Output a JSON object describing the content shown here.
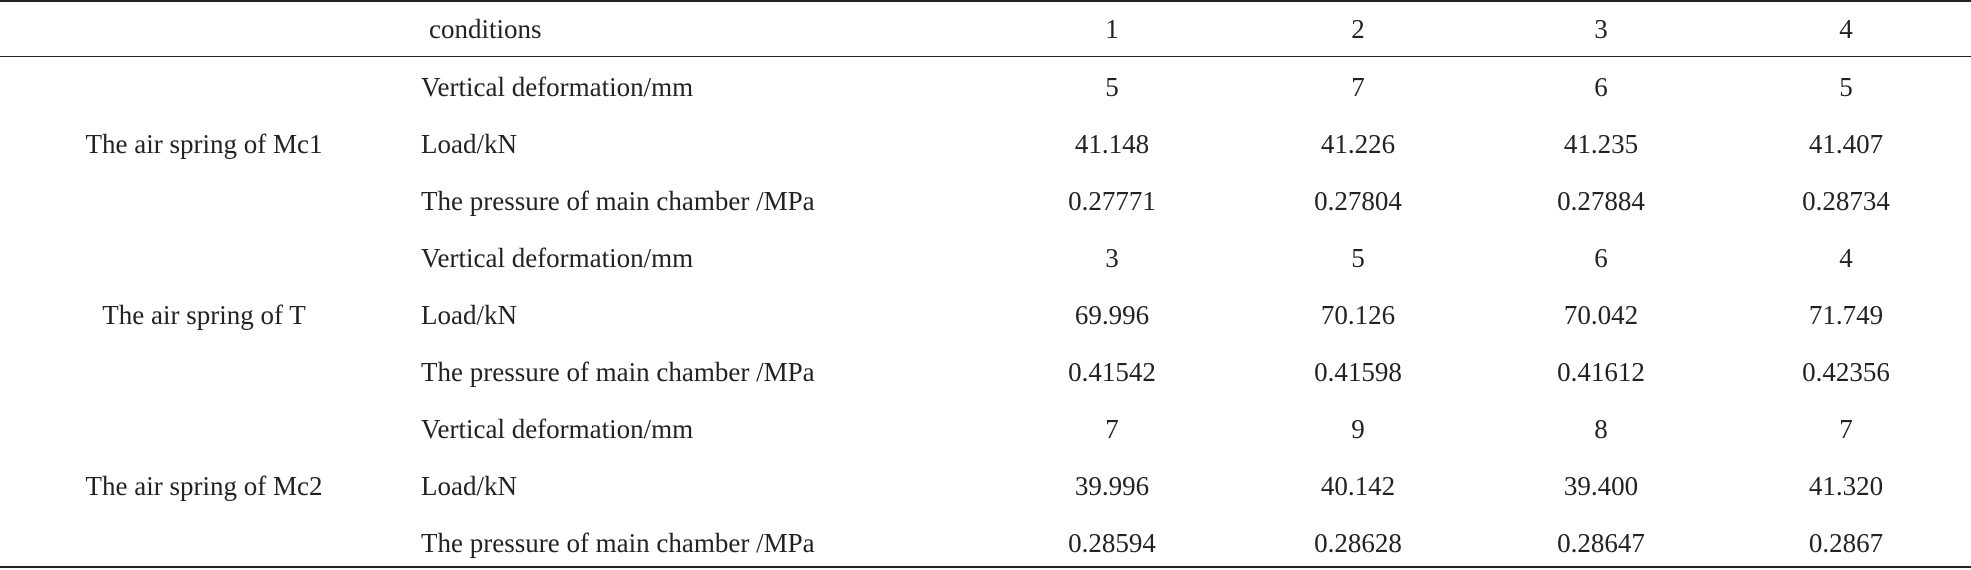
{
  "table": {
    "header": [
      "conditions",
      "1",
      "2",
      "3",
      "4"
    ],
    "groups": [
      {
        "label": "The air spring of Mc1",
        "rows": [
          [
            "Vertical deformation/mm",
            "5",
            "7",
            "6",
            "5"
          ],
          [
            "Load/kN",
            "41.148",
            "41.226",
            "41.235",
            "41.407"
          ],
          [
            "The pressure of main chamber /MPa",
            "0.27771",
            "0.27804",
            "0.27884",
            "0.28734"
          ]
        ]
      },
      {
        "label": "The air spring of T",
        "rows": [
          [
            "Vertical deformation/mm",
            "3",
            "5",
            "6",
            "4"
          ],
          [
            "Load/kN",
            "69.996",
            "70.126",
            "70.042",
            "71.749"
          ],
          [
            "The pressure of main chamber /MPa",
            "0.41542",
            "0.41598",
            "0.41612",
            "0.42356"
          ]
        ]
      },
      {
        "label": "The air spring of Mc2",
        "rows": [
          [
            "Vertical deformation/mm",
            "7",
            "9",
            "8",
            "7"
          ],
          [
            "Load/kN",
            "39.996",
            "40.142",
            "39.400",
            "41.320"
          ],
          [
            "The pressure of main chamber /MPa",
            "0.28594",
            "0.28628",
            "0.28647",
            "0.2867"
          ]
        ]
      }
    ]
  }
}
